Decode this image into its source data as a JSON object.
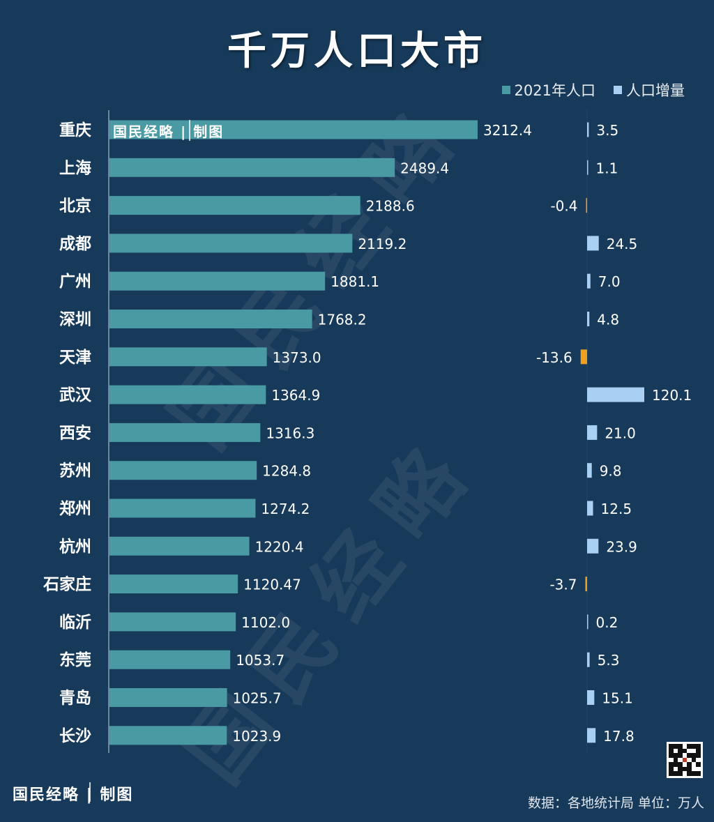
{
  "title": "千万人口大市",
  "legend": {
    "population_label": "2021年人口",
    "increase_label": "人口增量"
  },
  "brand": {
    "inline": "国民经略 | 制图",
    "bottom": "国民经略 | 制图",
    "watermark": "国民经略"
  },
  "source": "数据：各地统计局 单位：万人",
  "colors": {
    "background": "#173a5a",
    "population_bar": "#4a9aa3",
    "increase_positive": "#a9cff2",
    "increase_negative": "#f0a020",
    "axis": "#8aa3b8"
  },
  "chart_data": {
    "type": "bar",
    "orientation": "horizontal",
    "title": "千万人口大市",
    "unit": "万人",
    "categories": [
      "重庆",
      "上海",
      "北京",
      "成都",
      "广州",
      "深圳",
      "天津",
      "武汉",
      "西安",
      "苏州",
      "郑州",
      "杭州",
      "石家庄",
      "临沂",
      "东莞",
      "青岛",
      "长沙"
    ],
    "series": [
      {
        "name": "2021年人口",
        "values": [
          3212.4,
          2489.4,
          2188.6,
          2119.2,
          1881.1,
          1768.2,
          1373.0,
          1364.9,
          1316.3,
          1284.8,
          1274.2,
          1220.4,
          1120.47,
          1102.0,
          1053.7,
          1025.7,
          1023.9
        ],
        "labels": [
          "3212.4",
          "2489.4",
          "2188.6",
          "2119.2",
          "1881.1",
          "1768.2",
          "1373.0",
          "1364.9",
          "1316.3",
          "1284.8",
          "1274.2",
          "1220.4",
          "1120.47",
          "1102.0",
          "1053.7",
          "1025.7",
          "1023.9"
        ]
      },
      {
        "name": "人口增量",
        "values": [
          3.5,
          1.1,
          -0.4,
          24.5,
          7.0,
          4.8,
          -13.6,
          120.1,
          21.0,
          9.8,
          12.5,
          23.9,
          -3.7,
          0.2,
          5.3,
          15.1,
          17.8
        ],
        "labels": [
          "3.5",
          "1.1",
          "-0.4",
          "24.5",
          "7.0",
          "4.8",
          "-13.6",
          "120.1",
          "21.0",
          "9.8",
          "12.5",
          "23.9",
          "-3.7",
          "0.2",
          "5.3",
          "15.1",
          "17.8"
        ]
      }
    ],
    "legend_position": "top-right",
    "grid": false
  }
}
